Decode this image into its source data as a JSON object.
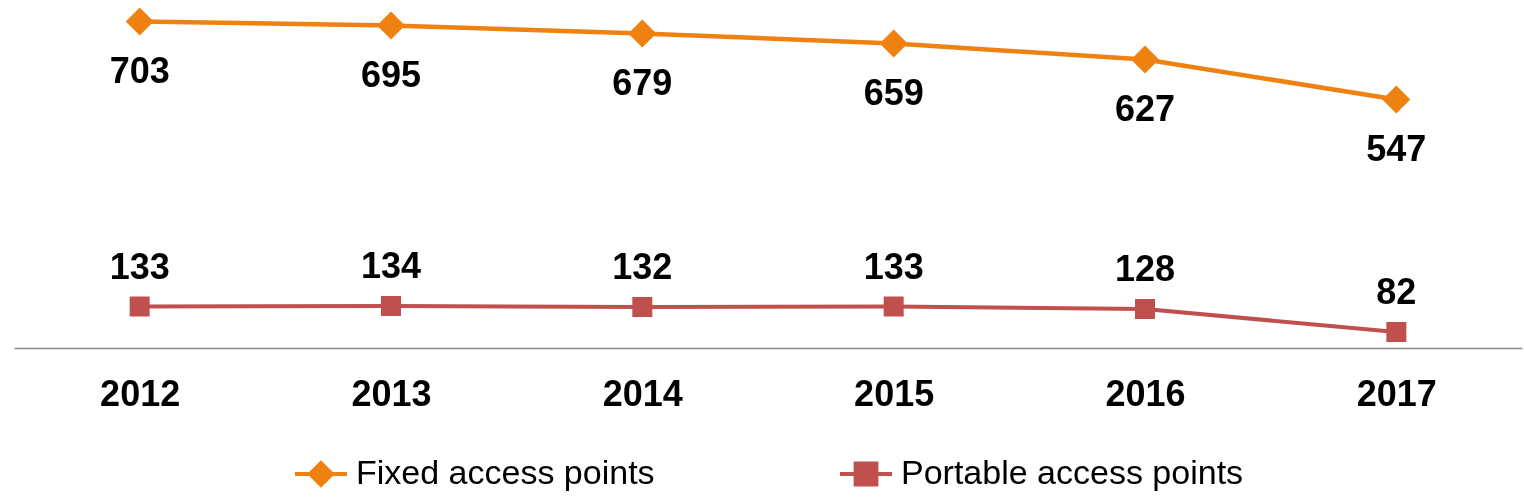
{
  "chart_data": {
    "type": "line",
    "categories": [
      "2012",
      "2013",
      "2014",
      "2015",
      "2016",
      "2017"
    ],
    "series": [
      {
        "name": "Fixed access points",
        "color": "#ee8110",
        "marker": "diamond",
        "line_style": "solid",
        "values": [
          703,
          695,
          679,
          659,
          627,
          547
        ]
      },
      {
        "name": "Portable access points",
        "color": "#c0504d",
        "marker": "square",
        "line_style": "solid",
        "values": [
          133,
          134,
          132,
          133,
          128,
          82
        ]
      }
    ],
    "ylim": [
      50,
      740
    ],
    "tick_labels": "x",
    "data_labels": true,
    "legend": "bottom"
  }
}
